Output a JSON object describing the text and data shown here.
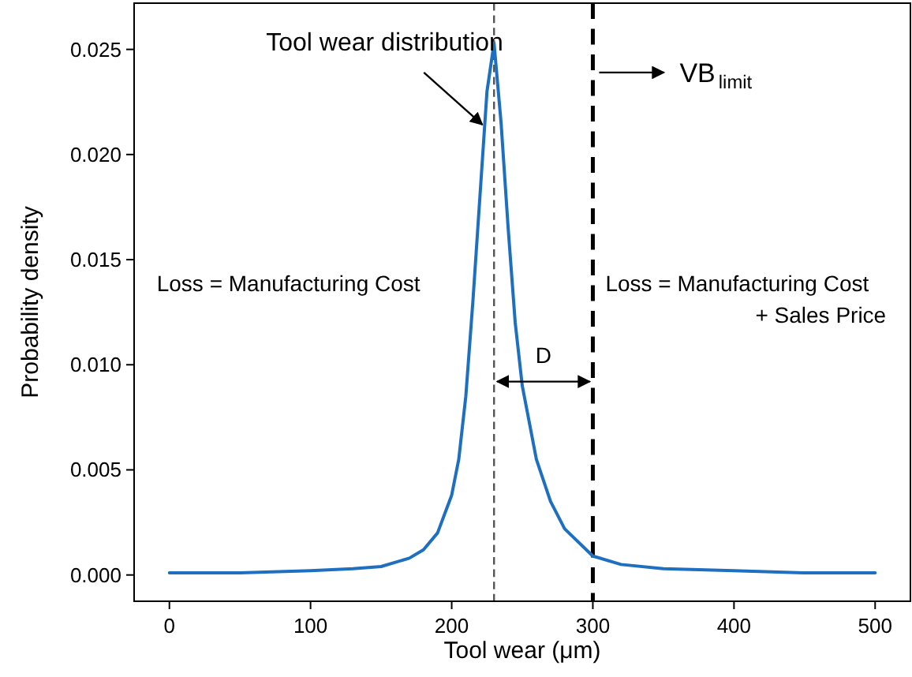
{
  "chart_data": {
    "type": "line",
    "xlabel": "Tool wear (μm)",
    "ylabel": "Probability density",
    "xlim": [
      -25,
      525
    ],
    "ylim": [
      -0.00125,
      0.0272
    ],
    "xticks": [
      0,
      100,
      200,
      300,
      400,
      500
    ],
    "yticks": [
      {
        "value": 0,
        "label": "0.000"
      },
      {
        "value": 0.005,
        "label": "0.005"
      },
      {
        "value": 0.01,
        "label": "0.010"
      },
      {
        "value": 0.015,
        "label": "0.015"
      },
      {
        "value": 0.02,
        "label": "0.020"
      },
      {
        "value": 0.025,
        "label": "0.025"
      }
    ],
    "grid": false,
    "line_style": "solid",
    "x": [
      0,
      50,
      100,
      130,
      150,
      170,
      180,
      190,
      200,
      205,
      210,
      215,
      220,
      225,
      230,
      235,
      240,
      245,
      250,
      260,
      270,
      280,
      300,
      320,
      350,
      400,
      450,
      500
    ],
    "series": [
      {
        "color": "#1f6fc0",
        "values": [
          0.0001,
          0.0001,
          0.0002,
          0.0003,
          0.0004,
          0.0008,
          0.0012,
          0.002,
          0.0038,
          0.0055,
          0.0085,
          0.013,
          0.018,
          0.023,
          0.0253,
          0.0215,
          0.0165,
          0.012,
          0.009,
          0.0055,
          0.0035,
          0.0022,
          0.0009,
          0.0005,
          0.0003,
          0.0002,
          0.0001,
          0.0001
        ]
      }
    ],
    "ref_lines": [
      {
        "axis": "x",
        "value": 230,
        "color": "#555555",
        "line_style": "dashed"
      },
      {
        "axis": "x",
        "value": 300,
        "color": "#000000",
        "line_style": "dashed"
      }
    ],
    "annotations": [
      {
        "text": "Tool wear distribution",
        "x": 225,
        "y": 0.0212
      },
      {
        "text": "VB$_{limit}$",
        "x": 300,
        "y": 0.0239
      },
      "D",
      "Loss = Manufacturing Cost",
      "Loss = Manufacturing Cost\n+ Sales Price"
    ]
  }
}
